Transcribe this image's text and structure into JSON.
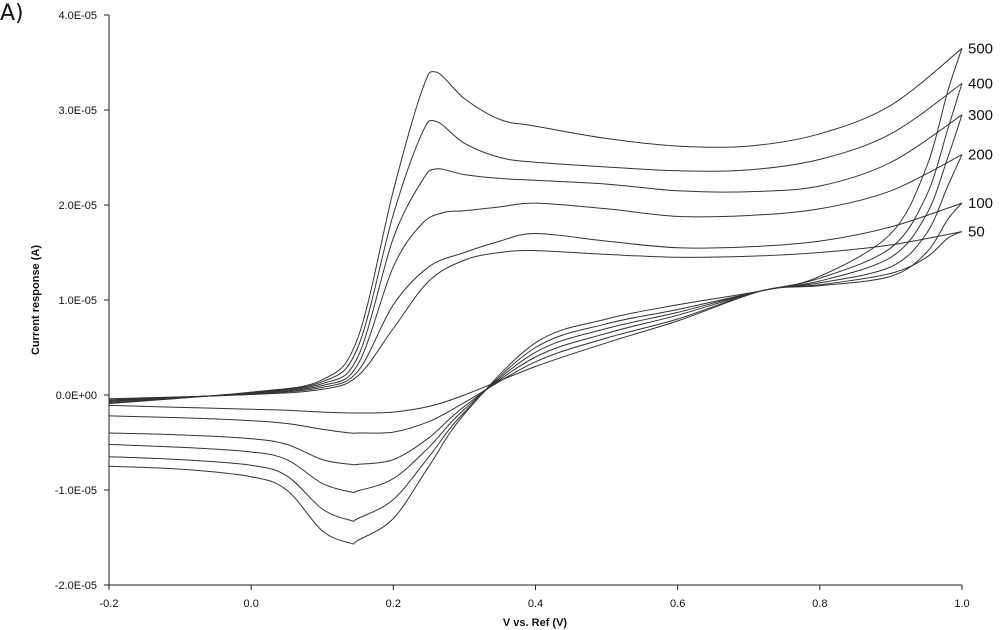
{
  "panel_label": "A)",
  "chart_data": {
    "type": "line",
    "title": "",
    "xlabel": "V vs. Ref (V)",
    "ylabel": "Current response (A)",
    "xlim": [
      -0.2,
      1.0
    ],
    "ylim": [
      -2e-05,
      4e-05
    ],
    "x_ticks": [
      "-0.2",
      "0.0",
      "0.2",
      "0.4",
      "0.6",
      "0.8",
      "1.0"
    ],
    "y_ticks": [
      "-2.0E-05",
      "-1.0E-05",
      "0.0E+00",
      "1.0E-05",
      "2.0E-05",
      "3.0E-05",
      "4.0E-05"
    ],
    "grid": false,
    "legend": "inline labels at right end of curves",
    "series": [
      {
        "name": "500",
        "forward": [
          [
            -0.2,
            -9e-07
          ],
          [
            0.0,
            3e-07
          ],
          [
            0.1,
            1.6e-06
          ],
          [
            0.15,
            6e-06
          ],
          [
            0.2,
            2.15e-05
          ],
          [
            0.24,
            3.2e-05
          ],
          [
            0.26,
            3.4e-05
          ],
          [
            0.3,
            3.12e-05
          ],
          [
            0.35,
            2.9e-05
          ],
          [
            0.4,
            2.83e-05
          ],
          [
            0.5,
            2.7e-05
          ],
          [
            0.6,
            2.62e-05
          ],
          [
            0.7,
            2.62e-05
          ],
          [
            0.8,
            2.75e-05
          ],
          [
            0.9,
            3.05e-05
          ],
          [
            1.0,
            3.65e-05
          ]
        ],
        "reverse": [
          [
            1.0,
            3.65e-05
          ],
          [
            0.98,
            3.2e-05
          ],
          [
            0.95,
            2.4e-05
          ],
          [
            0.9,
            1.7e-05
          ],
          [
            0.8,
            1.25e-05
          ],
          [
            0.72,
            1.1e-05
          ],
          [
            0.6,
            9.5e-06
          ],
          [
            0.5,
            8e-06
          ],
          [
            0.4,
            5.5e-06
          ],
          [
            0.3,
            -2e-06
          ],
          [
            0.25,
            -7.5e-06
          ],
          [
            0.2,
            -1.3e-05
          ],
          [
            0.15,
            -1.53e-05
          ],
          [
            0.14,
            -1.56e-05
          ],
          [
            0.1,
            -1.43e-05
          ],
          [
            0.05,
            -1e-05
          ],
          [
            0.0,
            -8.6e-06
          ],
          [
            -0.1,
            -7.8e-06
          ],
          [
            -0.2,
            -7.5e-06
          ]
        ]
      },
      {
        "name": "400",
        "forward": [
          [
            -0.2,
            -8e-07
          ],
          [
            0.0,
            2.5e-07
          ],
          [
            0.1,
            1.4e-06
          ],
          [
            0.15,
            5e-06
          ],
          [
            0.2,
            1.9e-05
          ],
          [
            0.24,
            2.75e-05
          ],
          [
            0.26,
            2.88e-05
          ],
          [
            0.3,
            2.65e-05
          ],
          [
            0.35,
            2.5e-05
          ],
          [
            0.4,
            2.45e-05
          ],
          [
            0.5,
            2.4e-05
          ],
          [
            0.6,
            2.36e-05
          ],
          [
            0.7,
            2.37e-05
          ],
          [
            0.8,
            2.48e-05
          ],
          [
            0.9,
            2.75e-05
          ],
          [
            1.0,
            3.28e-05
          ]
        ],
        "reverse": [
          [
            1.0,
            3.28e-05
          ],
          [
            0.98,
            2.8e-05
          ],
          [
            0.95,
            2.1e-05
          ],
          [
            0.9,
            1.55e-05
          ],
          [
            0.8,
            1.23e-05
          ],
          [
            0.72,
            1.1e-05
          ],
          [
            0.6,
            9e-06
          ],
          [
            0.5,
            7.5e-06
          ],
          [
            0.4,
            5e-06
          ],
          [
            0.3,
            -1.8e-06
          ],
          [
            0.25,
            -6.5e-06
          ],
          [
            0.2,
            -1.1e-05
          ],
          [
            0.15,
            -1.3e-05
          ],
          [
            0.14,
            -1.32e-05
          ],
          [
            0.1,
            -1.2e-05
          ],
          [
            0.05,
            -8.5e-06
          ],
          [
            0.0,
            -7.4e-06
          ],
          [
            -0.1,
            -6.8e-06
          ],
          [
            -0.2,
            -6.5e-06
          ]
        ]
      },
      {
        "name": "300",
        "forward": [
          [
            -0.2,
            -7e-07
          ],
          [
            0.0,
            2e-07
          ],
          [
            0.1,
            1.2e-06
          ],
          [
            0.15,
            4e-06
          ],
          [
            0.2,
            1.65e-05
          ],
          [
            0.24,
            2.25e-05
          ],
          [
            0.26,
            2.38e-05
          ],
          [
            0.3,
            2.32e-05
          ],
          [
            0.35,
            2.28e-05
          ],
          [
            0.4,
            2.26e-05
          ],
          [
            0.5,
            2.22e-05
          ],
          [
            0.6,
            2.15e-05
          ],
          [
            0.7,
            2.14e-05
          ],
          [
            0.8,
            2.2e-05
          ],
          [
            0.9,
            2.45e-05
          ],
          [
            1.0,
            2.95e-05
          ]
        ],
        "reverse": [
          [
            1.0,
            2.95e-05
          ],
          [
            0.98,
            2.5e-05
          ],
          [
            0.95,
            1.9e-05
          ],
          [
            0.9,
            1.45e-05
          ],
          [
            0.8,
            1.2e-05
          ],
          [
            0.72,
            1.1e-05
          ],
          [
            0.6,
            8.7e-06
          ],
          [
            0.5,
            7e-06
          ],
          [
            0.4,
            4.5e-06
          ],
          [
            0.3,
            -1.5e-06
          ],
          [
            0.25,
            -5.5e-06
          ],
          [
            0.2,
            -8.8e-06
          ],
          [
            0.15,
            -1.01e-05
          ],
          [
            0.14,
            -1.02e-05
          ],
          [
            0.1,
            -9.3e-06
          ],
          [
            0.05,
            -6.8e-06
          ],
          [
            0.0,
            -6e-06
          ],
          [
            -0.1,
            -5.5e-06
          ],
          [
            -0.2,
            -5.2e-06
          ]
        ]
      },
      {
        "name": "200",
        "forward": [
          [
            -0.2,
            -6e-07
          ],
          [
            0.0,
            1.5e-07
          ],
          [
            0.1,
            1e-06
          ],
          [
            0.15,
            3.2e-06
          ],
          [
            0.2,
            1.35e-05
          ],
          [
            0.24,
            1.8e-05
          ],
          [
            0.27,
            1.92e-05
          ],
          [
            0.3,
            1.94e-05
          ],
          [
            0.35,
            1.98e-05
          ],
          [
            0.4,
            2.02e-05
          ],
          [
            0.5,
            1.96e-05
          ],
          [
            0.6,
            1.88e-05
          ],
          [
            0.7,
            1.89e-05
          ],
          [
            0.8,
            1.96e-05
          ],
          [
            0.9,
            2.15e-05
          ],
          [
            1.0,
            2.53e-05
          ]
        ],
        "reverse": [
          [
            1.0,
            2.53e-05
          ],
          [
            0.98,
            2.2e-05
          ],
          [
            0.95,
            1.7e-05
          ],
          [
            0.9,
            1.35e-05
          ],
          [
            0.8,
            1.18e-05
          ],
          [
            0.72,
            1.1e-05
          ],
          [
            0.6,
            8.4e-06
          ],
          [
            0.5,
            6.5e-06
          ],
          [
            0.4,
            4e-06
          ],
          [
            0.3,
            -1.2e-06
          ],
          [
            0.25,
            -4.5e-06
          ],
          [
            0.2,
            -6.8e-06
          ],
          [
            0.15,
            -7.3e-06
          ],
          [
            0.14,
            -7.3e-06
          ],
          [
            0.1,
            -6.8e-06
          ],
          [
            0.05,
            -5.2e-06
          ],
          [
            0.0,
            -4.6e-06
          ],
          [
            -0.1,
            -4.2e-06
          ],
          [
            -0.2,
            -4e-06
          ]
        ]
      },
      {
        "name": "100",
        "forward": [
          [
            -0.2,
            -5e-07
          ],
          [
            0.0,
            1e-07
          ],
          [
            0.1,
            8e-07
          ],
          [
            0.15,
            2.5e-06
          ],
          [
            0.2,
            9.5e-06
          ],
          [
            0.25,
            1.35e-05
          ],
          [
            0.3,
            1.5e-05
          ],
          [
            0.35,
            1.62e-05
          ],
          [
            0.4,
            1.7e-05
          ],
          [
            0.5,
            1.62e-05
          ],
          [
            0.6,
            1.55e-05
          ],
          [
            0.7,
            1.56e-05
          ],
          [
            0.8,
            1.62e-05
          ],
          [
            0.9,
            1.77e-05
          ],
          [
            1.0,
            2.02e-05
          ]
        ],
        "reverse": [
          [
            1.0,
            2.02e-05
          ],
          [
            0.98,
            1.85e-05
          ],
          [
            0.95,
            1.5e-05
          ],
          [
            0.9,
            1.25e-05
          ],
          [
            0.8,
            1.15e-05
          ],
          [
            0.72,
            1.1e-05
          ],
          [
            0.6,
            8e-06
          ],
          [
            0.5,
            6e-06
          ],
          [
            0.4,
            3.5e-06
          ],
          [
            0.3,
            -8e-07
          ],
          [
            0.25,
            -2.8e-06
          ],
          [
            0.2,
            -3.9e-06
          ],
          [
            0.15,
            -4e-06
          ],
          [
            0.14,
            -4e-06
          ],
          [
            0.1,
            -3.6e-06
          ],
          [
            0.05,
            -3e-06
          ],
          [
            0.0,
            -2.7e-06
          ],
          [
            -0.1,
            -2.4e-06
          ],
          [
            -0.2,
            -2.2e-06
          ]
        ]
      },
      {
        "name": "50",
        "forward": [
          [
            -0.2,
            -4e-07
          ],
          [
            0.0,
            5e-08
          ],
          [
            0.1,
            6e-07
          ],
          [
            0.15,
            2e-06
          ],
          [
            0.2,
            7e-06
          ],
          [
            0.25,
            1.2e-05
          ],
          [
            0.3,
            1.42e-05
          ],
          [
            0.35,
            1.5e-05
          ],
          [
            0.4,
            1.52e-05
          ],
          [
            0.5,
            1.48e-05
          ],
          [
            0.6,
            1.45e-05
          ],
          [
            0.7,
            1.46e-05
          ],
          [
            0.8,
            1.5e-05
          ],
          [
            0.9,
            1.58e-05
          ],
          [
            1.0,
            1.72e-05
          ]
        ],
        "reverse": [
          [
            1.0,
            1.72e-05
          ],
          [
            0.98,
            1.65e-05
          ],
          [
            0.95,
            1.45e-05
          ],
          [
            0.9,
            1.28e-05
          ],
          [
            0.8,
            1.16e-05
          ],
          [
            0.72,
            1.1e-05
          ],
          [
            0.6,
            7.8e-06
          ],
          [
            0.5,
            5.5e-06
          ],
          [
            0.4,
            3e-06
          ],
          [
            0.3,
            0.0
          ],
          [
            0.25,
            -1.2e-06
          ],
          [
            0.2,
            -1.8e-06
          ],
          [
            0.15,
            -1.9e-06
          ],
          [
            0.1,
            -1.8e-06
          ],
          [
            0.05,
            -1.6e-06
          ],
          [
            0.0,
            -1.5e-06
          ],
          [
            -0.1,
            -1.3e-06
          ],
          [
            -0.2,
            -1.1e-06
          ]
        ]
      }
    ]
  }
}
